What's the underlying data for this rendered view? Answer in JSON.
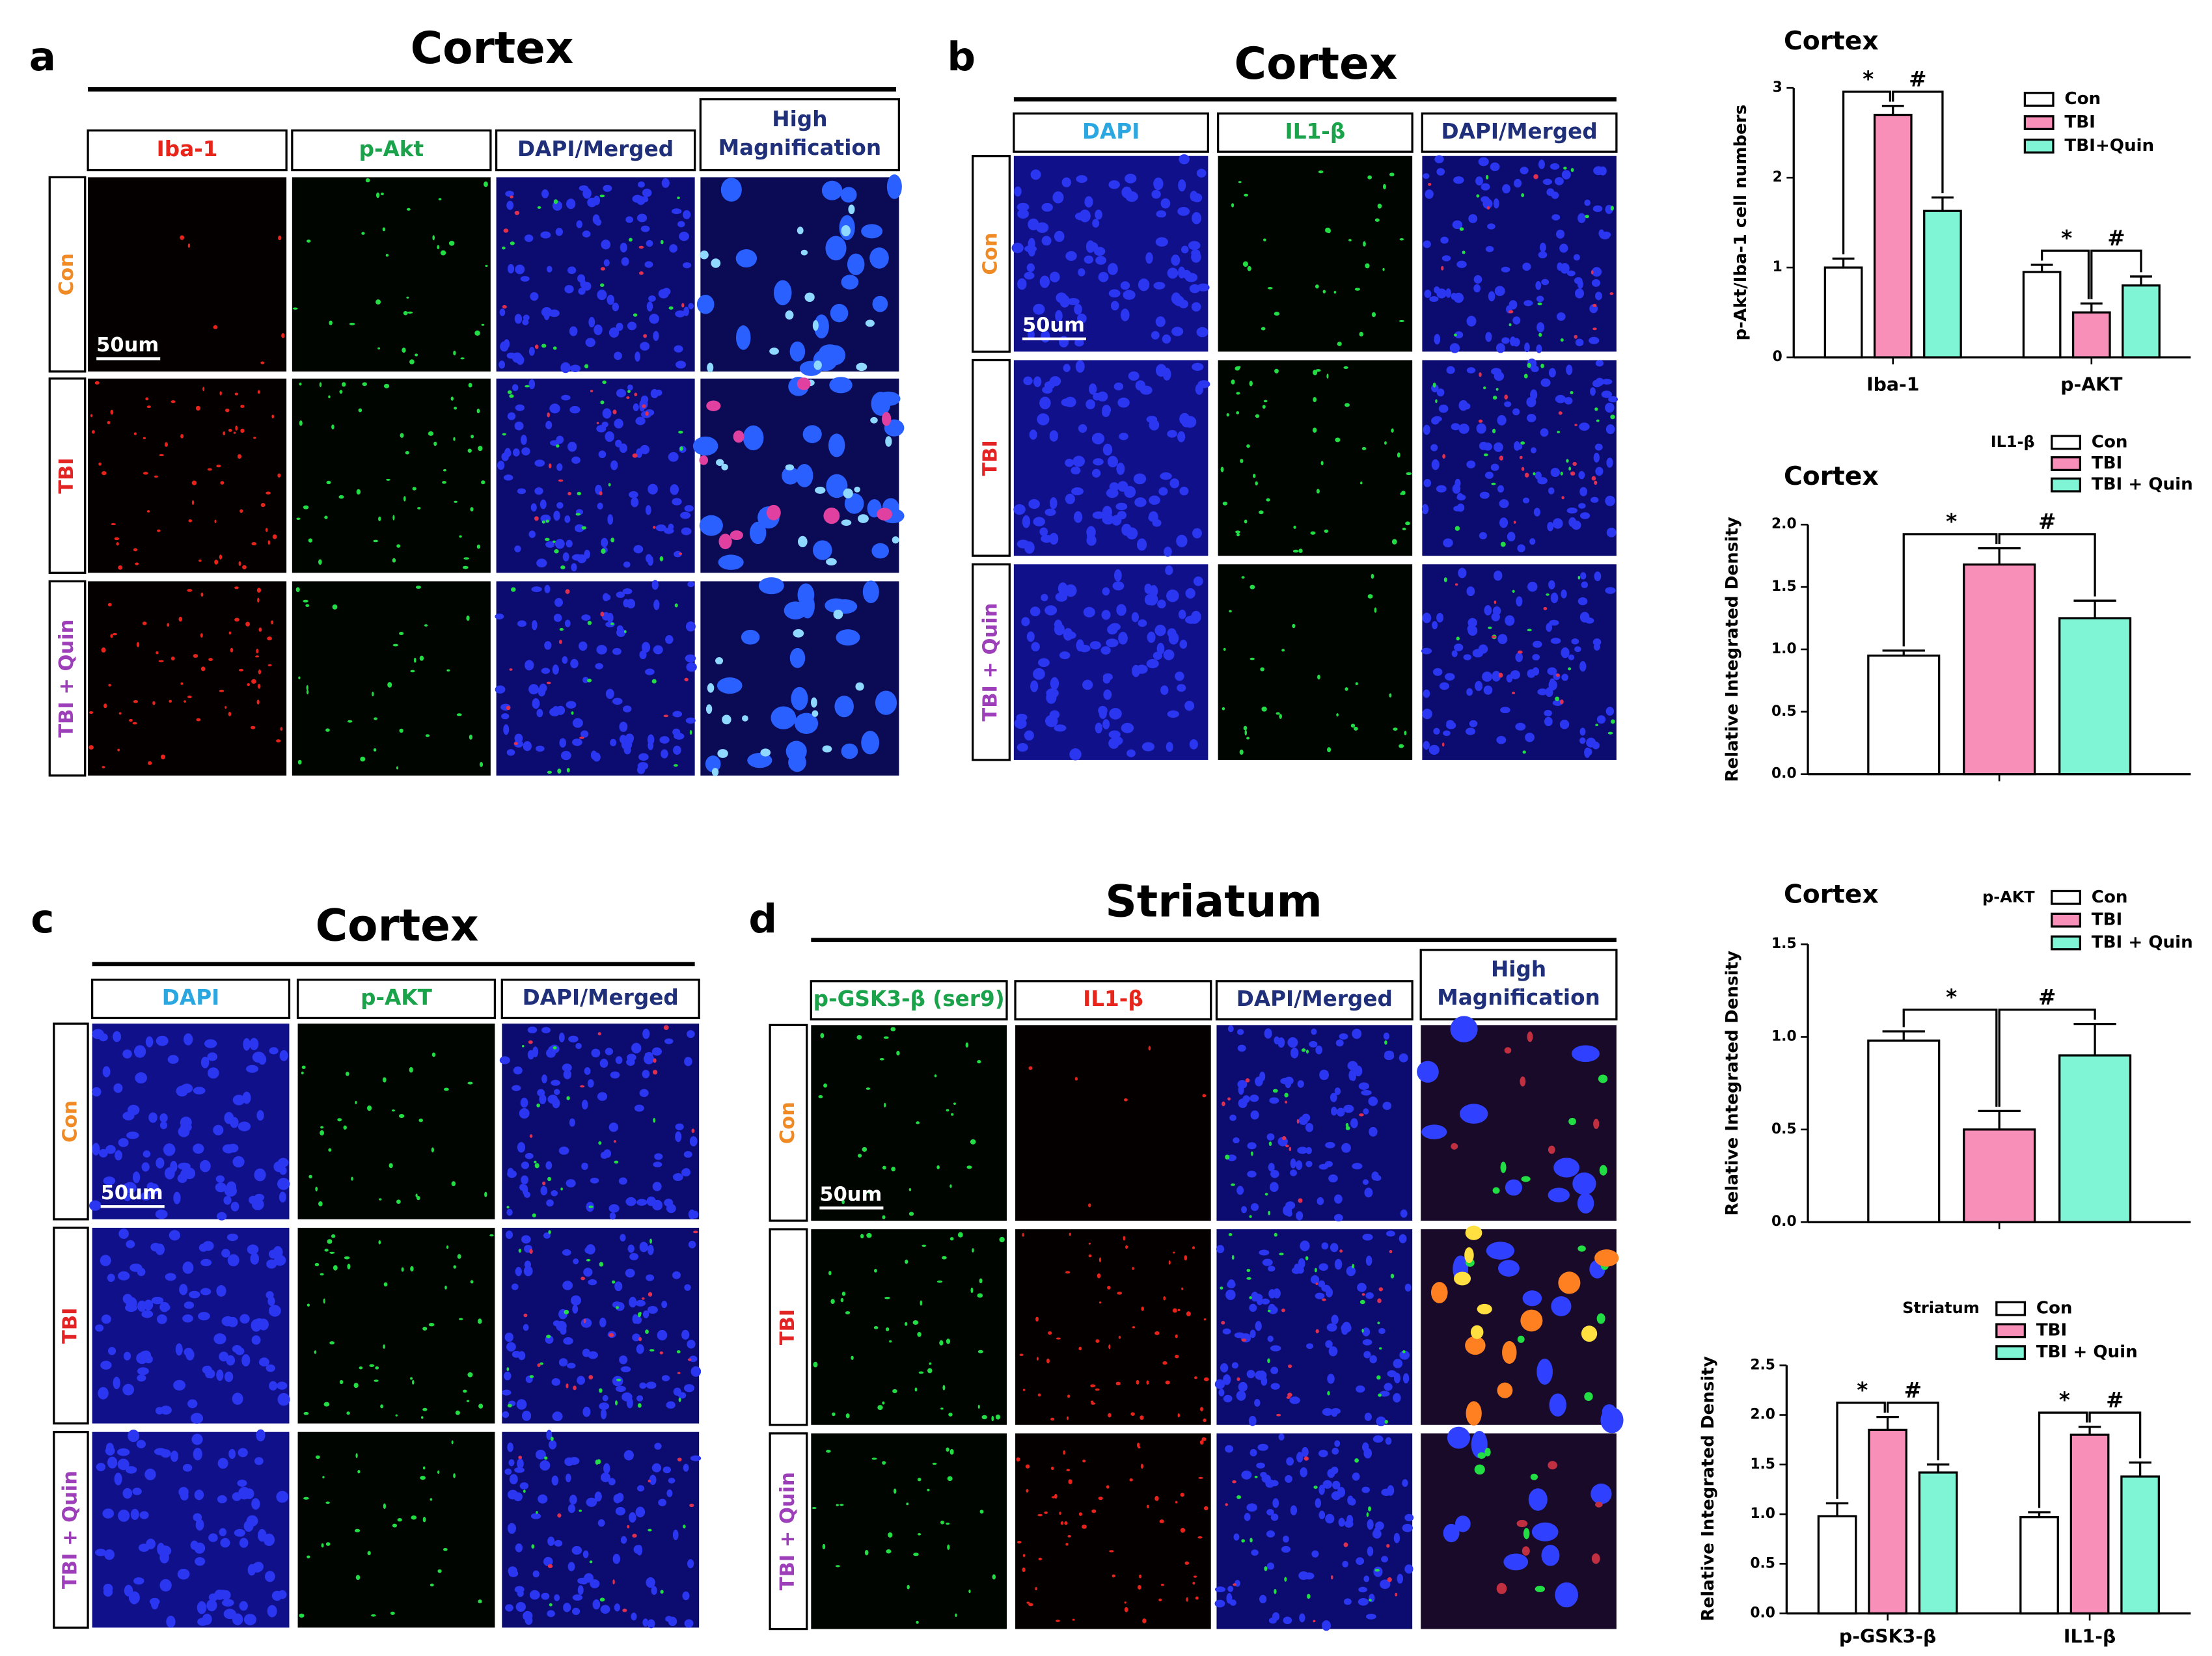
{
  "panels": [
    {
      "letter": "a",
      "title": "Cortex",
      "columns": [
        {
          "label": "Iba-1",
          "color": "#e8251b"
        },
        {
          "label": "p-Akt",
          "color": "#1aa34a"
        },
        {
          "label": "DAPI/Merged",
          "color": "#1f2f7a"
        },
        {
          "label": "High Magnification",
          "color": "#1f2f7a"
        }
      ],
      "rows": [
        {
          "label": "Con",
          "color": "#f08a24"
        },
        {
          "label": "TBI",
          "color": "#e32424"
        },
        {
          "label": "TBI + Quin",
          "color": "#9c3fb8"
        }
      ],
      "scale_bar": "50um"
    },
    {
      "letter": "b",
      "title": "Cortex",
      "columns": [
        {
          "label": "DAPI",
          "color": "#2aa7e0"
        },
        {
          "label": "IL1-β",
          "color": "#1aa34a"
        },
        {
          "label": "DAPI/Merged",
          "color": "#1f2f7a"
        }
      ],
      "rows": [
        {
          "label": "Con",
          "color": "#f08a24"
        },
        {
          "label": "TBI",
          "color": "#e32424"
        },
        {
          "label": "TBI + Quin",
          "color": "#9c3fb8"
        }
      ],
      "scale_bar": "50um"
    },
    {
      "letter": "c",
      "title": "Cortex",
      "columns": [
        {
          "label": "DAPI",
          "color": "#2aa7e0"
        },
        {
          "label": "p-AKT",
          "color": "#1aa34a"
        },
        {
          "label": "DAPI/Merged",
          "color": "#1f2f7a"
        }
      ],
      "rows": [
        {
          "label": "Con",
          "color": "#f08a24"
        },
        {
          "label": "TBI",
          "color": "#e32424"
        },
        {
          "label": "TBI + Quin",
          "color": "#9c3fb8"
        }
      ],
      "scale_bar": "50um"
    },
    {
      "letter": "d",
      "title": "Striatum",
      "columns": [
        {
          "label": "p-GSK3-β (ser9)",
          "color": "#1aa34a"
        },
        {
          "label": "IL1-β",
          "color": "#e8251b"
        },
        {
          "label": "DAPI/Merged",
          "color": "#1f2f7a"
        },
        {
          "label": "High Magnification",
          "color": "#1f2f7a"
        }
      ],
      "rows": [
        {
          "label": "Con",
          "color": "#f08a24"
        },
        {
          "label": "TBI",
          "color": "#e32424"
        },
        {
          "label": "TBI + Quin",
          "color": "#9c3fb8"
        }
      ],
      "scale_bar": "50um"
    }
  ],
  "chart_data": [
    {
      "type": "bar",
      "title": "Cortex",
      "ylabel": "p-Akt/Iba-1 cell numbers",
      "categories": [
        "Iba-1",
        "p-AKT"
      ],
      "series": [
        {
          "name": "Con",
          "color": "#ffffff",
          "values": [
            1.0,
            0.95
          ],
          "errors": [
            0.1,
            0.08
          ]
        },
        {
          "name": "TBI",
          "color": "#f78fb8",
          "values": [
            2.7,
            0.5
          ],
          "errors": [
            0.1,
            0.1
          ]
        },
        {
          "name": "TBI+Quin",
          "color": "#7ff5d5",
          "values": [
            1.63,
            0.8
          ],
          "errors": [
            0.15,
            0.1
          ]
        }
      ],
      "annotations": [
        "*",
        "#",
        "*",
        "#"
      ],
      "ylim": [
        0,
        3
      ],
      "yticks": [
        0,
        1,
        2,
        3
      ]
    },
    {
      "type": "bar",
      "title": "Cortex",
      "legend_title": "IL1-β",
      "ylabel": "Relative Integrated Density",
      "series": [
        {
          "name": "Con",
          "color": "#ffffff",
          "values": [
            0.95
          ],
          "errors": [
            0.04
          ]
        },
        {
          "name": "TBI",
          "color": "#f78fb8",
          "values": [
            1.68
          ],
          "errors": [
            0.13
          ]
        },
        {
          "name": "TBI + Quin",
          "color": "#7ff5d5",
          "values": [
            1.25
          ],
          "errors": [
            0.14
          ]
        }
      ],
      "annotations": [
        "*",
        "#"
      ],
      "ylim": [
        0,
        2
      ],
      "yticks": [
        {
          "value": 0,
          "label": "0.0"
        },
        {
          "value": 0.5,
          "label": "0.5"
        },
        {
          "value": 1,
          "label": "1.0"
        },
        {
          "value": 1.5,
          "label": "1.5"
        },
        {
          "value": 2,
          "label": "2.0"
        }
      ]
    },
    {
      "type": "bar",
      "title": "Cortex",
      "legend_title": "p-AKT",
      "ylabel": "Relative Integrated Density",
      "series": [
        {
          "name": "Con",
          "color": "#ffffff",
          "values": [
            0.98
          ],
          "errors": [
            0.05
          ]
        },
        {
          "name": "TBI",
          "color": "#f78fb8",
          "values": [
            0.5
          ],
          "errors": [
            0.1
          ]
        },
        {
          "name": "TBI + Quin",
          "color": "#7ff5d5",
          "values": [
            0.9
          ],
          "errors": [
            0.17
          ]
        }
      ],
      "annotations": [
        "*",
        "#"
      ],
      "ylim": [
        0,
        1.5
      ],
      "yticks": [
        {
          "value": 0,
          "label": "0.0"
        },
        {
          "value": 0.5,
          "label": "0.5"
        },
        {
          "value": 1,
          "label": "1.0"
        },
        {
          "value": 1.5,
          "label": "1.5"
        }
      ]
    },
    {
      "type": "bar",
      "legend_title": "Striatum",
      "ylabel": "Relative Integrated Density",
      "categories": [
        "p-GSK3-β",
        "IL1-β"
      ],
      "series": [
        {
          "name": "Con",
          "color": "#ffffff",
          "values": [
            0.98,
            0.97
          ],
          "errors": [
            0.13,
            0.05
          ]
        },
        {
          "name": "TBI",
          "color": "#f78fb8",
          "values": [
            1.85,
            1.8
          ],
          "errors": [
            0.13,
            0.08
          ]
        },
        {
          "name": "TBI + Quin",
          "color": "#7ff5d5",
          "values": [
            1.42,
            1.38
          ],
          "errors": [
            0.08,
            0.14
          ]
        }
      ],
      "annotations": [
        "*",
        "#",
        "*",
        "#"
      ],
      "ylim": [
        0,
        2.5
      ],
      "yticks": [
        {
          "value": 0,
          "label": "0.0"
        },
        {
          "value": 0.5,
          "label": "0.5"
        },
        {
          "value": 1,
          "label": "1.0"
        },
        {
          "value": 1.5,
          "label": "1.5"
        },
        {
          "value": 2,
          "label": "2.0"
        },
        {
          "value": 2.5,
          "label": "2.5"
        }
      ]
    }
  ]
}
